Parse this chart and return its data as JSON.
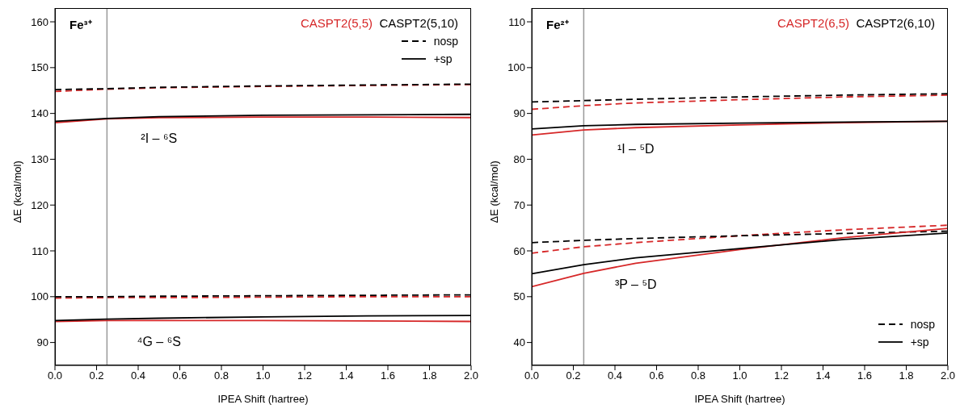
{
  "chart_data": [
    {
      "type": "line",
      "title": "Fe³⁺",
      "xlabel": "IPEA Shift (hartree)",
      "ylabel": "ΔE (kcal/mol)",
      "x": [
        0,
        0.25,
        0.5,
        1,
        1.5,
        2
      ],
      "series": [
        {
          "color": "#d62728",
          "line_style": "dashed",
          "values": [
            144.8,
            145.3,
            145.6,
            145.9,
            146.1,
            146.3
          ]
        },
        {
          "color": "#000000",
          "line_style": "dashed",
          "values": [
            145.2,
            145.4,
            145.7,
            146.0,
            146.2,
            146.4
          ]
        },
        {
          "color": "#d62728",
          "line_style": "solid",
          "values": [
            138.0,
            138.8,
            139.1,
            139.2,
            139.2,
            139.1
          ]
        },
        {
          "color": "#000000",
          "line_style": "solid",
          "values": [
            138.3,
            138.9,
            139.3,
            139.6,
            139.7,
            139.8
          ]
        },
        {
          "color": "#d62728",
          "line_style": "dashed",
          "values": [
            99.7,
            99.8,
            99.8,
            99.9,
            100.0,
            100.0
          ]
        },
        {
          "color": "#000000",
          "line_style": "dashed",
          "values": [
            100.0,
            100.0,
            100.1,
            100.2,
            100.3,
            100.4
          ]
        },
        {
          "color": "#d62728",
          "line_style": "solid",
          "values": [
            94.6,
            94.8,
            94.8,
            94.8,
            94.7,
            94.6
          ]
        },
        {
          "color": "#000000",
          "line_style": "solid",
          "values": [
            94.8,
            95.1,
            95.3,
            95.6,
            95.8,
            95.9
          ]
        }
      ],
      "xlim": [
        0,
        2
      ],
      "xticks": [
        {
          "value": 0,
          "label": "0.0"
        },
        0.2,
        0.4,
        0.6,
        0.8,
        {
          "value": 1,
          "label": "1.0"
        },
        1.2,
        1.4,
        1.6,
        1.8,
        {
          "value": 2,
          "label": "2.0"
        }
      ],
      "ylim": [
        85,
        163
      ],
      "yticks": [
        90,
        100,
        110,
        120,
        130,
        140,
        150,
        160
      ],
      "ref_lines": [
        {
          "axis": "x",
          "value": 0.25,
          "color": "#999999"
        }
      ],
      "annotations": [
        "CASPT2(5,5)",
        "CASPT2(5,10)",
        "nosp",
        "+sp",
        "²I – ⁶S",
        "⁴G – ⁶S"
      ]
    },
    {
      "type": "line",
      "title": "Fe²⁺",
      "xlabel": "IPEA Shift (hartree)",
      "ylabel": "ΔE (kcal/mol)",
      "x": [
        0,
        0.25,
        0.5,
        1,
        1.5,
        2
      ],
      "series": [
        {
          "color": "#d62728",
          "line_style": "dashed",
          "values": [
            90.9,
            91.7,
            92.3,
            93.0,
            93.6,
            94.0
          ]
        },
        {
          "color": "#000000",
          "line_style": "dashed",
          "values": [
            92.5,
            92.8,
            93.1,
            93.6,
            94.0,
            94.3
          ]
        },
        {
          "color": "#d62728",
          "line_style": "solid",
          "values": [
            85.3,
            86.4,
            86.9,
            87.5,
            88.0,
            88.3
          ]
        },
        {
          "color": "#000000",
          "line_style": "solid",
          "values": [
            86.6,
            87.3,
            87.6,
            87.9,
            88.1,
            88.3
          ]
        },
        {
          "color": "#d62728",
          "line_style": "dashed",
          "values": [
            59.5,
            60.9,
            61.8,
            63.3,
            64.6,
            65.6
          ]
        },
        {
          "color": "#000000",
          "line_style": "dashed",
          "values": [
            61.8,
            62.3,
            62.7,
            63.3,
            63.8,
            64.3
          ]
        },
        {
          "color": "#d62728",
          "line_style": "solid",
          "values": [
            52.2,
            55.1,
            57.3,
            60.3,
            62.9,
            64.9
          ]
        },
        {
          "color": "#000000",
          "line_style": "solid",
          "values": [
            55.0,
            57.0,
            58.5,
            60.5,
            62.5,
            63.9
          ]
        }
      ],
      "xlim": [
        0,
        2
      ],
      "xticks": [
        {
          "value": 0,
          "label": "0.0"
        },
        0.2,
        0.4,
        0.6,
        0.8,
        {
          "value": 1,
          "label": "1.0"
        },
        1.2,
        1.4,
        1.6,
        1.8,
        {
          "value": 2,
          "label": "2.0"
        }
      ],
      "ylim": [
        35,
        113
      ],
      "yticks": [
        40,
        50,
        60,
        70,
        80,
        90,
        100,
        110
      ],
      "ref_lines": [
        {
          "axis": "x",
          "value": 0.25,
          "color": "#999999"
        }
      ],
      "annotations": [
        "CASPT2(6,5)",
        "CASPT2(6,10)",
        "nosp",
        "+sp",
        "¹I – ⁵D",
        "³P – ⁵D"
      ]
    }
  ]
}
